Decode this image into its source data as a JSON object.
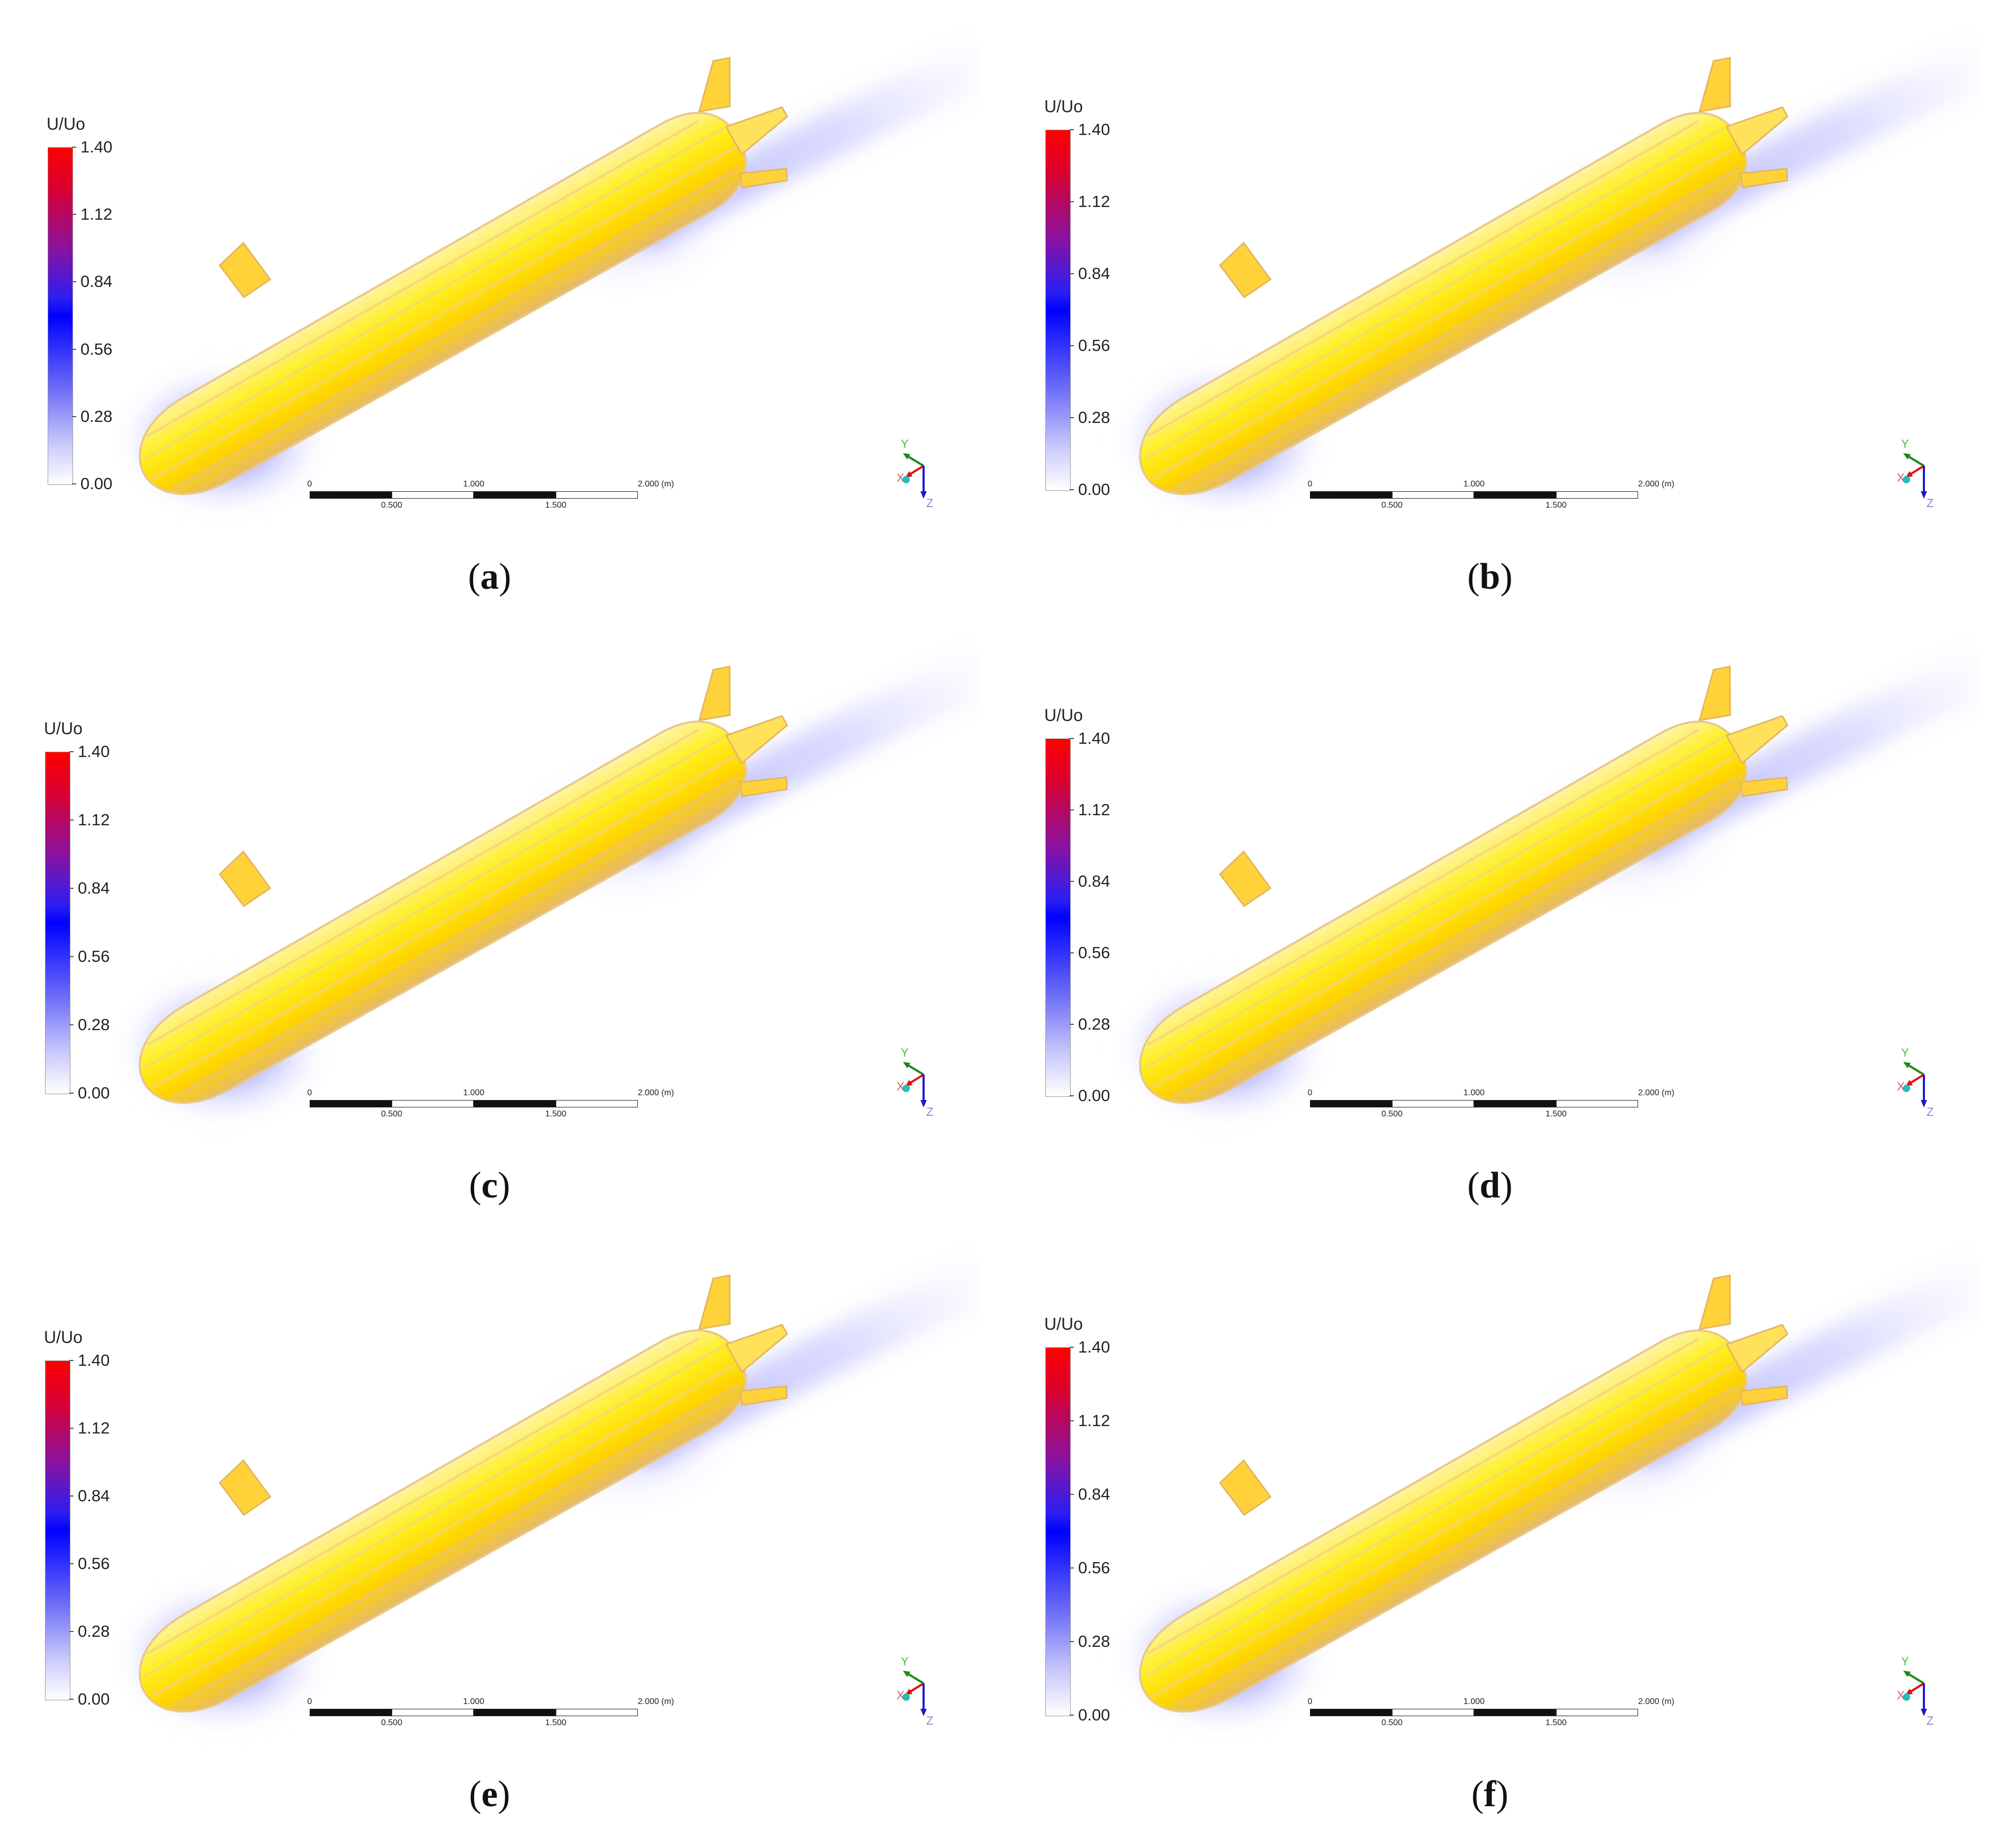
{
  "panels": [
    {
      "id": "a",
      "caption": {
        "open": "(",
        "letter": "a",
        "close": ")"
      },
      "legend": {
        "title": "U/Uo",
        "ticks": [
          "1.40",
          "1.12",
          "0.84",
          "0.56",
          "0.28",
          "0.00"
        ]
      },
      "scale": {
        "top_labels": [
          "0",
          "1.000",
          "2.000 (m)"
        ],
        "bottom_labels": [
          "0.500",
          "1.500"
        ]
      },
      "axes": {
        "y": "Y",
        "x": "X",
        "z": "Z"
      }
    },
    {
      "id": "b",
      "caption": {
        "open": "(",
        "letter": "b",
        "close": ")"
      },
      "legend": {
        "title": "U/Uo",
        "ticks": [
          "1.40",
          "1.12",
          "0.84",
          "0.56",
          "0.28",
          "0.00"
        ]
      },
      "scale": {
        "top_labels": [
          "0",
          "1.000",
          "2.000 (m)"
        ],
        "bottom_labels": [
          "0.500",
          "1.500"
        ]
      },
      "axes": {
        "y": "Y",
        "x": "X",
        "z": "Z"
      }
    },
    {
      "id": "c",
      "caption": {
        "open": "(",
        "letter": "c",
        "close": ")"
      },
      "legend": {
        "title": "U/Uo",
        "ticks": [
          "1.40",
          "1.12",
          "0.84",
          "0.56",
          "0.28",
          "0.00"
        ]
      },
      "scale": {
        "top_labels": [
          "0",
          "1.000",
          "2.000 (m)"
        ],
        "bottom_labels": [
          "0.500",
          "1.500"
        ]
      },
      "axes": {
        "y": "Y",
        "x": "X",
        "z": "Z"
      }
    },
    {
      "id": "d",
      "caption": {
        "open": "(",
        "letter": "d",
        "close": ")"
      },
      "legend": {
        "title": "U/Uo",
        "ticks": [
          "1.40",
          "1.12",
          "0.84",
          "0.56",
          "0.28",
          "0.00"
        ]
      },
      "scale": {
        "top_labels": [
          "0",
          "1.000",
          "2.000 (m)"
        ],
        "bottom_labels": [
          "0.500",
          "1.500"
        ]
      },
      "axes": {
        "y": "Y",
        "x": "X",
        "z": "Z"
      }
    },
    {
      "id": "e",
      "caption": {
        "open": "(",
        "letter": "e",
        "close": ")"
      },
      "legend": {
        "title": "U/Uo",
        "ticks": [
          "1.40",
          "1.12",
          "0.84",
          "0.56",
          "0.28",
          "0.00"
        ]
      },
      "scale": {
        "top_labels": [
          "0",
          "1.000",
          "2.000 (m)"
        ],
        "bottom_labels": [
          "0.500",
          "1.500"
        ]
      },
      "axes": {
        "y": "Y",
        "x": "X",
        "z": "Z"
      }
    },
    {
      "id": "f",
      "caption": {
        "open": "(",
        "letter": "f",
        "close": ")"
      },
      "legend": {
        "title": "U/Uo",
        "ticks": [
          "1.40",
          "1.12",
          "0.84",
          "0.56",
          "0.28",
          "0.00"
        ]
      },
      "scale": {
        "top_labels": [
          "0",
          "1.000",
          "2.000 (m)"
        ],
        "bottom_labels": [
          "0.500",
          "1.500"
        ]
      },
      "axes": {
        "y": "Y",
        "x": "X",
        "z": "Z"
      }
    }
  ],
  "colors": {
    "hull": "#ffe600",
    "hull_edge": "#e0b84a",
    "wake": "#6b6bff",
    "scale_high": "#ff0000",
    "scale_mid": "#0000ff",
    "scale_low": "#ffffff"
  }
}
